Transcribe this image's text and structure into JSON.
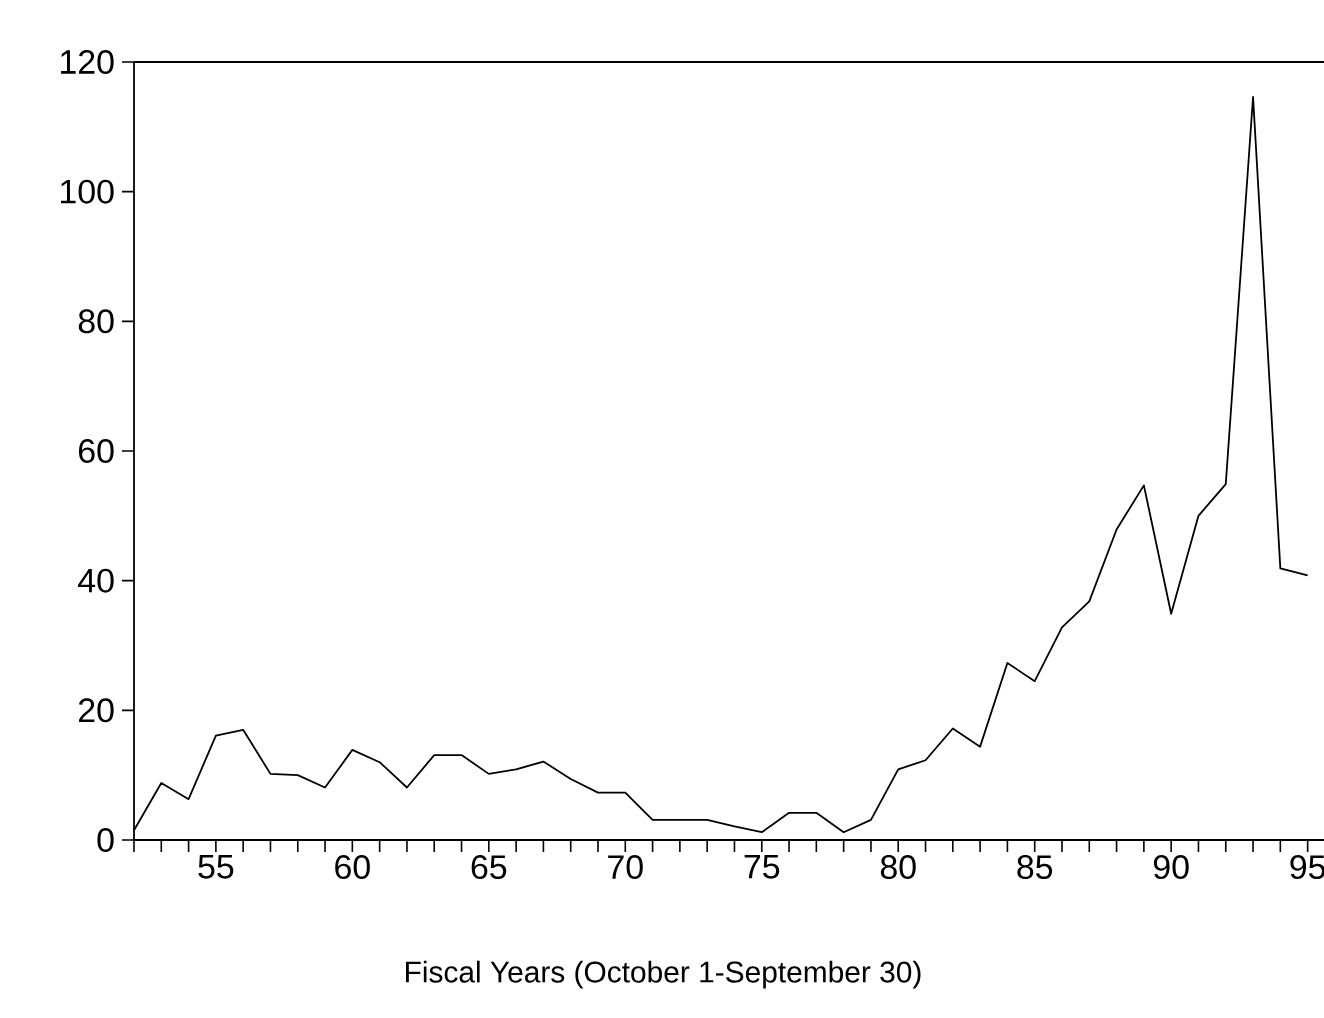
{
  "chart_data": {
    "type": "line",
    "xlabel": "Fiscal Years (October 1-September 30)",
    "x": [
      52,
      53,
      54,
      55,
      56,
      57,
      58,
      59,
      60,
      61,
      62,
      63,
      64,
      65,
      66,
      67,
      68,
      69,
      70,
      71,
      72,
      73,
      74,
      75,
      76,
      77,
      78,
      79,
      80,
      81,
      82,
      83,
      84,
      85,
      86,
      87,
      88,
      89,
      90,
      91,
      92,
      93,
      94,
      95
    ],
    "values": [
      1.5,
      8.8,
      6.3,
      16.1,
      17,
      10.2,
      10,
      8.1,
      13.9,
      12,
      8.1,
      13.1,
      13.1,
      10.2,
      10.9,
      12.1,
      9.4,
      7.3,
      7.3,
      3.1,
      3.1,
      3.1,
      2.1,
      1.2,
      4.2,
      4.2,
      1.2,
      3.1,
      10.9,
      12.3,
      17.2,
      14.4,
      27.3,
      24.5,
      32.8,
      36.8,
      47.9,
      54.7,
      34.9,
      50,
      54.9,
      114.6,
      41.9,
      40.8
    ],
    "color": "#000000",
    "xlim": [
      52,
      95.6
    ],
    "ylim": [
      0,
      120
    ],
    "xticks": [
      {
        "value": 52,
        "label": null
      },
      {
        "value": 53,
        "label": null
      },
      {
        "value": 54,
        "label": null
      },
      55,
      {
        "value": 56,
        "label": null
      },
      {
        "value": 57,
        "label": null
      },
      {
        "value": 58,
        "label": null
      },
      {
        "value": 59,
        "label": null
      },
      60,
      {
        "value": 61,
        "label": null
      },
      {
        "value": 62,
        "label": null
      },
      {
        "value": 63,
        "label": null
      },
      {
        "value": 64,
        "label": null
      },
      65,
      {
        "value": 66,
        "label": null
      },
      {
        "value": 67,
        "label": null
      },
      {
        "value": 68,
        "label": null
      },
      {
        "value": 69,
        "label": null
      },
      70,
      {
        "value": 71,
        "label": null
      },
      {
        "value": 72,
        "label": null
      },
      {
        "value": 73,
        "label": null
      },
      {
        "value": 74,
        "label": null
      },
      75,
      {
        "value": 76,
        "label": null
      },
      {
        "value": 77,
        "label": null
      },
      {
        "value": 78,
        "label": null
      },
      {
        "value": 79,
        "label": null
      },
      80,
      {
        "value": 81,
        "label": null
      },
      {
        "value": 82,
        "label": null
      },
      {
        "value": 83,
        "label": null
      },
      {
        "value": 84,
        "label": null
      },
      85,
      {
        "value": 86,
        "label": null
      },
      {
        "value": 87,
        "label": null
      },
      {
        "value": 88,
        "label": null
      },
      {
        "value": 89,
        "label": null
      },
      90,
      {
        "value": 91,
        "label": null
      },
      {
        "value": 92,
        "label": null
      },
      {
        "value": 93,
        "label": null
      },
      {
        "value": 94,
        "label": null
      },
      95
    ],
    "yticks": [
      0,
      20,
      40,
      60,
      80,
      100,
      120
    ]
  }
}
